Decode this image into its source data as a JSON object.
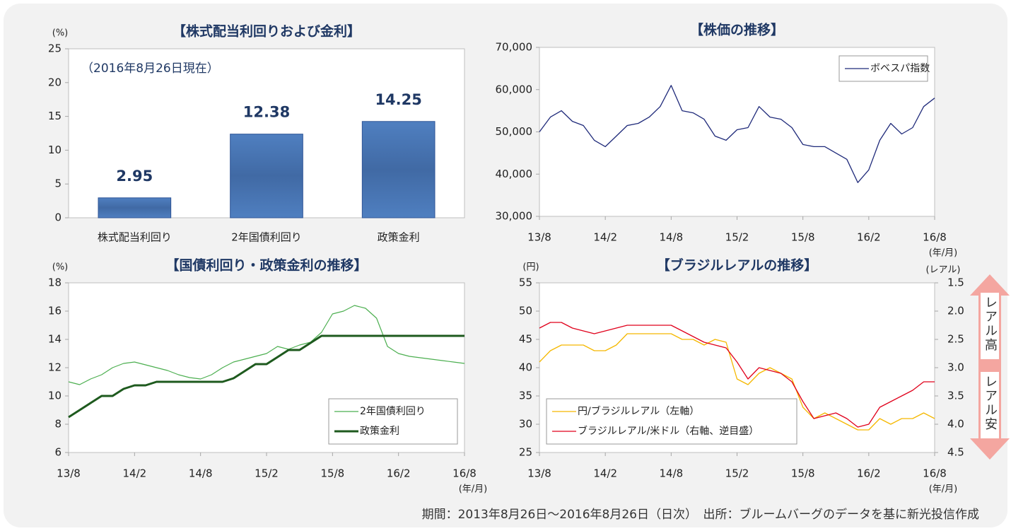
{
  "chart_data": [
    {
      "type": "bar",
      "title": "【株式配当利回りおよび金利】",
      "y_unit": "(%)",
      "annotation": "（2016年8月26日現在）",
      "categories": [
        "株式配当利回り",
        "2年国債利回り",
        "政策金利"
      ],
      "values": [
        2.95,
        12.38,
        14.25
      ],
      "color": "#4f7fc0",
      "ylim": [
        0,
        25
      ],
      "yticks": [
        0,
        5,
        10,
        15,
        20,
        25
      ]
    },
    {
      "type": "line",
      "title": "【株価の推移】",
      "x_unit": "(年/月)",
      "x": [
        "13/8",
        "13/9",
        "13/10",
        "13/11",
        "13/12",
        "14/1",
        "14/2",
        "14/3",
        "14/4",
        "14/5",
        "14/6",
        "14/7",
        "14/8",
        "14/9",
        "14/10",
        "14/11",
        "14/12",
        "15/1",
        "15/2",
        "15/3",
        "15/4",
        "15/5",
        "15/6",
        "15/7",
        "15/8",
        "15/9",
        "15/10",
        "15/11",
        "15/12",
        "16/1",
        "16/2",
        "16/3",
        "16/4",
        "16/5",
        "16/6",
        "16/7",
        "16/8"
      ],
      "xticks": [
        "13/8",
        "14/2",
        "14/8",
        "15/2",
        "15/8",
        "16/2",
        "16/8"
      ],
      "series": [
        {
          "name": "ボベスパ指数",
          "color": "#1f2a7a",
          "line_width": 1.3,
          "values": [
            50000,
            53500,
            55000,
            52500,
            51500,
            48000,
            46500,
            49000,
            51500,
            52000,
            53500,
            56000,
            61000,
            55000,
            54500,
            53000,
            49000,
            48000,
            50500,
            51000,
            56000,
            53500,
            53000,
            51000,
            47000,
            46500,
            46500,
            45000,
            43500,
            38000,
            41000,
            48000,
            52000,
            49500,
            51000,
            56000,
            58000
          ]
        }
      ],
      "ylim": [
        30000,
        70000
      ],
      "yticks": [
        {
          "value": 30000,
          "label": "30,000"
        },
        {
          "value": 40000,
          "label": "40,000"
        },
        {
          "value": 50000,
          "label": "50,000"
        },
        {
          "value": 60000,
          "label": "60,000"
        },
        {
          "value": 70000,
          "label": "70,000"
        }
      ],
      "legend": "top-right"
    },
    {
      "type": "line",
      "title": "【国債利回り・政策金利の推移】",
      "y_unit": "(%)",
      "x_unit": "(年/月)",
      "x": [
        "13/8",
        "13/9",
        "13/10",
        "13/11",
        "13/12",
        "14/1",
        "14/2",
        "14/3",
        "14/4",
        "14/5",
        "14/6",
        "14/7",
        "14/8",
        "14/9",
        "14/10",
        "14/11",
        "14/12",
        "15/1",
        "15/2",
        "15/3",
        "15/4",
        "15/5",
        "15/6",
        "15/7",
        "15/8",
        "15/9",
        "15/10",
        "15/11",
        "15/12",
        "16/1",
        "16/2",
        "16/3",
        "16/4",
        "16/5",
        "16/6",
        "16/7",
        "16/8"
      ],
      "xticks": [
        "13/8",
        "14/2",
        "14/8",
        "15/2",
        "15/8",
        "16/2",
        "16/8"
      ],
      "series": [
        {
          "name": "2年国債利回り",
          "color": "#4caf50",
          "line_width": 1.2,
          "values": [
            11.0,
            10.8,
            11.2,
            11.5,
            12.0,
            12.3,
            12.4,
            12.2,
            12.0,
            11.8,
            11.5,
            11.3,
            11.2,
            11.5,
            12.0,
            12.4,
            12.6,
            12.8,
            13.0,
            13.5,
            13.3,
            13.6,
            13.8,
            14.5,
            15.8,
            16.0,
            16.4,
            16.2,
            15.5,
            13.5,
            13.0,
            12.8,
            12.7,
            12.6,
            12.5,
            12.4,
            12.3
          ]
        },
        {
          "name": "政策金利",
          "color": "#1e5a1e",
          "line_width": 3,
          "values": [
            8.5,
            9.0,
            9.5,
            10.0,
            10.0,
            10.5,
            10.75,
            10.75,
            11.0,
            11.0,
            11.0,
            11.0,
            11.0,
            11.0,
            11.0,
            11.25,
            11.75,
            12.25,
            12.25,
            12.75,
            13.25,
            13.25,
            13.75,
            14.25,
            14.25,
            14.25,
            14.25,
            14.25,
            14.25,
            14.25,
            14.25,
            14.25,
            14.25,
            14.25,
            14.25,
            14.25,
            14.25
          ]
        }
      ],
      "ylim": [
        6,
        18
      ],
      "yticks": [
        6,
        8,
        10,
        12,
        14,
        16,
        18
      ],
      "legend": "bottom-right"
    },
    {
      "type": "line",
      "title": "【ブラジルレアルの推移】",
      "y_unit": "(円)",
      "y2_unit": "(レアル)",
      "x_unit": "(年/月)",
      "annotations": [
        "レアル高",
        "レアル安"
      ],
      "x": [
        "13/8",
        "13/9",
        "13/10",
        "13/11",
        "13/12",
        "14/1",
        "14/2",
        "14/3",
        "14/4",
        "14/5",
        "14/6",
        "14/7",
        "14/8",
        "14/9",
        "14/10",
        "14/11",
        "14/12",
        "15/1",
        "15/2",
        "15/3",
        "15/4",
        "15/5",
        "15/6",
        "15/7",
        "15/8",
        "15/9",
        "15/10",
        "15/11",
        "15/12",
        "16/1",
        "16/2",
        "16/3",
        "16/4",
        "16/5",
        "16/6",
        "16/7",
        "16/8"
      ],
      "xticks": [
        "13/8",
        "14/2",
        "14/8",
        "15/2",
        "15/8",
        "16/2",
        "16/8"
      ],
      "series": [
        {
          "name": "円/ブラジルレアル（左軸）",
          "color": "#f5b800",
          "line_width": 1.3,
          "values": [
            41,
            43,
            44,
            44,
            44,
            43,
            43,
            44,
            46,
            46,
            46,
            46,
            46,
            45,
            45,
            44,
            45,
            44.5,
            38,
            37,
            39,
            40,
            39,
            38,
            33,
            31,
            32,
            31,
            30,
            29,
            29,
            31,
            30,
            31,
            31,
            32,
            31
          ]
        },
        {
          "name": "ブラジルレアル/米ドル（右軸、逆目盛）",
          "color": "#e0001b",
          "line_width": 1.3,
          "axis": "y2",
          "values": [
            2.3,
            2.2,
            2.2,
            2.3,
            2.35,
            2.4,
            2.35,
            2.3,
            2.25,
            2.25,
            2.25,
            2.25,
            2.25,
            2.35,
            2.45,
            2.55,
            2.6,
            2.65,
            2.9,
            3.2,
            3.0,
            3.05,
            3.1,
            3.25,
            3.6,
            3.9,
            3.85,
            3.8,
            3.9,
            4.05,
            4.0,
            3.7,
            3.6,
            3.5,
            3.4,
            3.25,
            3.25
          ]
        }
      ],
      "ylim": [
        25,
        55
      ],
      "yticks": [
        25,
        30,
        35,
        40,
        45,
        50,
        55
      ],
      "y2lim": [
        1.5,
        4.5
      ],
      "y2_inverted": true,
      "y2ticks": [
        1.5,
        {
          "value": 2,
          "label": "2.0"
        },
        2.5,
        {
          "value": 3,
          "label": "3.0"
        },
        3.5,
        {
          "value": 4,
          "label": "4.0"
        },
        4.5
      ],
      "legend": "bottom-left"
    }
  ],
  "footer": "期間：2013年8月26日～2016年8月26日（日次）　出所：ブルームバーグのデータを基に新光投信作成"
}
